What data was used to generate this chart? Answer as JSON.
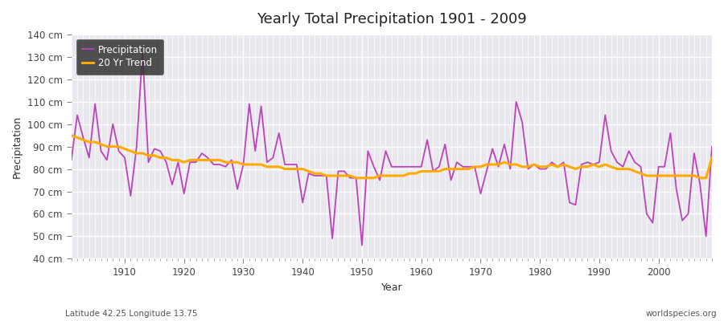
{
  "title": "Yearly Total Precipitation 1901 - 2009",
  "xlabel": "Year",
  "ylabel": "Precipitation",
  "subtitle": "Latitude 42.25 Longitude 13.75",
  "watermark": "worldspecies.org",
  "ylim": [
    40,
    140
  ],
  "xlim": [
    1901,
    2009
  ],
  "yticks": [
    40,
    50,
    60,
    70,
    80,
    90,
    100,
    110,
    120,
    130,
    140
  ],
  "ytick_labels": [
    "40 cm",
    "50 cm",
    "60 cm",
    "70 cm",
    "80 cm",
    "90 cm",
    "100 cm",
    "110 cm",
    "120 cm",
    "130 cm",
    "140 cm"
  ],
  "xticks": [
    1910,
    1920,
    1930,
    1940,
    1950,
    1960,
    1970,
    1980,
    1990,
    2000
  ],
  "precip_color": "#bb44bb",
  "trend_color": "#ffaa00",
  "bg_color": "#f0f0f5",
  "plot_bg_color": "#e8e8ee",
  "grid_color": "#ffffff",
  "years": [
    1901,
    1902,
    1903,
    1904,
    1905,
    1906,
    1907,
    1908,
    1909,
    1910,
    1911,
    1912,
    1913,
    1914,
    1915,
    1916,
    1917,
    1918,
    1919,
    1920,
    1921,
    1922,
    1923,
    1924,
    1925,
    1926,
    1927,
    1928,
    1929,
    1930,
    1931,
    1932,
    1933,
    1934,
    1935,
    1936,
    1937,
    1938,
    1939,
    1940,
    1941,
    1942,
    1943,
    1944,
    1945,
    1946,
    1947,
    1948,
    1949,
    1950,
    1951,
    1952,
    1953,
    1954,
    1955,
    1956,
    1957,
    1958,
    1959,
    1960,
    1961,
    1962,
    1963,
    1964,
    1965,
    1966,
    1967,
    1968,
    1969,
    1970,
    1971,
    1972,
    1973,
    1974,
    1975,
    1976,
    1977,
    1978,
    1979,
    1980,
    1981,
    1982,
    1983,
    1984,
    1985,
    1986,
    1987,
    1988,
    1989,
    1990,
    1991,
    1992,
    1993,
    1994,
    1995,
    1996,
    1997,
    1998,
    1999,
    2000,
    2001,
    2002,
    2003,
    2004,
    2005,
    2006,
    2007,
    2008,
    2009
  ],
  "precip": [
    84,
    104,
    94,
    85,
    109,
    88,
    84,
    100,
    88,
    85,
    68,
    90,
    132,
    83,
    89,
    88,
    83,
    73,
    83,
    69,
    83,
    83,
    87,
    85,
    82,
    82,
    81,
    84,
    71,
    82,
    109,
    88,
    108,
    83,
    85,
    96,
    82,
    82,
    82,
    65,
    78,
    77,
    77,
    77,
    49,
    79,
    79,
    76,
    76,
    46,
    88,
    81,
    75,
    88,
    81,
    81,
    81,
    81,
    81,
    81,
    93,
    79,
    81,
    91,
    75,
    83,
    81,
    81,
    81,
    69,
    79,
    89,
    81,
    91,
    80,
    110,
    101,
    80,
    82,
    80,
    80,
    83,
    81,
    83,
    65,
    64,
    82,
    83,
    82,
    83,
    104,
    88,
    83,
    81,
    88,
    83,
    81,
    60,
    56,
    81,
    81,
    96,
    71,
    57,
    60,
    87,
    73,
    50,
    90
  ],
  "trend": [
    95,
    94,
    93,
    92,
    92,
    91,
    90,
    90,
    90,
    89,
    88,
    87,
    87,
    86,
    86,
    85,
    85,
    84,
    84,
    83,
    84,
    84,
    84,
    84,
    84,
    84,
    83,
    83,
    83,
    82,
    82,
    82,
    82,
    81,
    81,
    81,
    80,
    80,
    80,
    80,
    79,
    78,
    78,
    77,
    77,
    77,
    77,
    77,
    76,
    76,
    76,
    76,
    77,
    77,
    77,
    77,
    77,
    78,
    78,
    79,
    79,
    79,
    79,
    80,
    80,
    80,
    80,
    80,
    81,
    81,
    82,
    82,
    82,
    83,
    82,
    82,
    81,
    81,
    82,
    81,
    81,
    82,
    81,
    82,
    81,
    80,
    81,
    81,
    82,
    81,
    82,
    81,
    80,
    80,
    80,
    79,
    78,
    77,
    77,
    77,
    77,
    77,
    77,
    77,
    77,
    77,
    76,
    76,
    85
  ]
}
